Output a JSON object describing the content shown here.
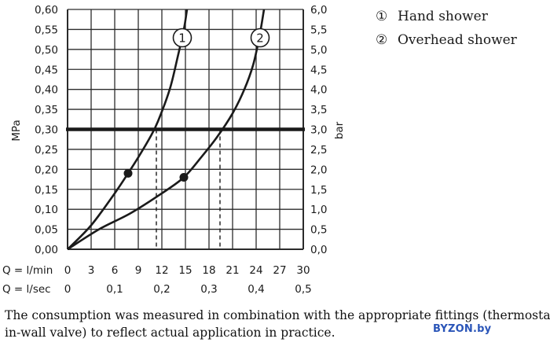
{
  "chart_data": {
    "type": "line",
    "x_axes": [
      {
        "label": "Q = l/min",
        "ticks": [
          "0",
          "3",
          "6",
          "9",
          "12",
          "15",
          "18",
          "21",
          "24",
          "27",
          "30"
        ]
      },
      {
        "label": "Q = l/sec",
        "ticks": [
          "0",
          "0,1",
          "0,2",
          "0,3",
          "0,4",
          "0,5"
        ]
      }
    ],
    "ylabel_left": "MPa",
    "ylabel_right": "bar",
    "y_ticks_left": [
      "0,00",
      "0,05",
      "0,10",
      "0,15",
      "0,20",
      "0,25",
      "0,30",
      "0,35",
      "0,40",
      "0,45",
      "0,50",
      "0,55",
      "0,60"
    ],
    "y_ticks_right": [
      "0,0",
      "0,5",
      "1,0",
      "1,5",
      "2,0",
      "2,5",
      "3,0",
      "3,5",
      "4,0",
      "4,5",
      "5,0",
      "5,5",
      "6,0"
    ],
    "xlim": [
      0,
      30
    ],
    "ylim": [
      0,
      0.6
    ],
    "grid": true,
    "legend_position": "right",
    "reference_line": {
      "y": 0.3
    },
    "series": [
      {
        "name": "Hand shower",
        "marker_label": "1",
        "x": [
          0,
          3,
          6,
          7.7,
          9,
          10.5,
          11.5,
          13,
          14,
          14.8,
          15.2
        ],
        "y": [
          0,
          0.06,
          0.14,
          0.19,
          0.23,
          0.28,
          0.32,
          0.4,
          0.48,
          0.55,
          0.6
        ],
        "marked_point": {
          "x": 7.7,
          "y": 0.19
        },
        "x_at_reference": 11.3
      },
      {
        "name": "Overhead shower",
        "marker_label": "2",
        "x": [
          0,
          4,
          8,
          12,
          14.8,
          17,
          19,
          21,
          22.5,
          23.6,
          24.4,
          25.0
        ],
        "y": [
          0,
          0.05,
          0.09,
          0.14,
          0.18,
          0.23,
          0.28,
          0.34,
          0.4,
          0.46,
          0.53,
          0.6
        ],
        "marked_point": {
          "x": 14.8,
          "y": 0.18
        },
        "x_at_reference": 19.4
      }
    ]
  },
  "legend": [
    {
      "marker": "①",
      "label": "Hand shower"
    },
    {
      "marker": "②",
      "label": "Overhead shower"
    }
  ],
  "caption": {
    "line1": "The consumption was measured in combination with the appropriate fittings (thermostat/mixer/",
    "line2": "in-wall valve) to reflect actual application in practice."
  },
  "watermark": "BYZON.by",
  "colors": {
    "ink": "#1a1a1a",
    "grid": "#2b2b2b",
    "watermark": "#2a55b8"
  }
}
